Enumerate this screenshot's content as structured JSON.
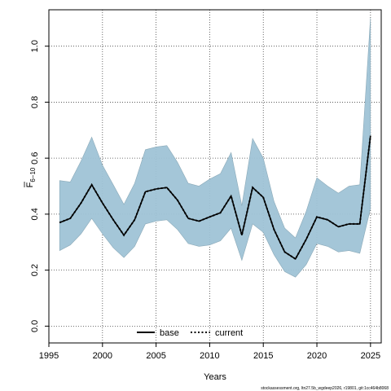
{
  "chart_data": {
    "type": "line",
    "xlabel": "Years",
    "ylabel_main": "F",
    "ylabel_sub": "6−10",
    "xlim": [
      1995,
      2026
    ],
    "ylim": [
      -0.06,
      1.13
    ],
    "x_ticks": [
      1995,
      2000,
      2005,
      2010,
      2015,
      2020,
      2025
    ],
    "y_ticks": [
      0.0,
      0.2,
      0.4,
      0.6,
      0.8,
      1.0
    ],
    "y_tick_labels": [
      "0.0",
      "0.2",
      "0.4",
      "0.6",
      "0.8",
      "1.0"
    ],
    "grid": true,
    "legend_position": "bottom-center",
    "x": [
      1996,
      1997,
      1998,
      1999,
      2000,
      2001,
      2002,
      2003,
      2004,
      2005,
      2006,
      2007,
      2008,
      2009,
      2010,
      2011,
      2012,
      2013,
      2014,
      2015,
      2016,
      2017,
      2018,
      2019,
      2020,
      2021,
      2022,
      2023,
      2024,
      2025
    ],
    "series": [
      {
        "name": "base",
        "style": "solid",
        "color": "#000000",
        "values": [
          0.37,
          0.385,
          0.44,
          0.505,
          0.44,
          0.38,
          0.325,
          0.38,
          0.48,
          0.49,
          0.495,
          0.45,
          0.385,
          0.375,
          0.39,
          0.405,
          0.465,
          0.325,
          0.495,
          0.46,
          0.345,
          0.265,
          0.24,
          0.31,
          0.39,
          0.38,
          0.355,
          0.365,
          0.365,
          0.68
        ]
      },
      {
        "name": "current",
        "style": "dotted",
        "color": "#000000",
        "values": [
          0.37,
          0.385,
          0.44,
          0.505,
          0.44,
          0.38,
          0.325,
          0.38,
          0.48,
          0.49,
          0.495,
          0.45,
          0.385,
          0.375,
          0.39,
          0.405,
          0.465,
          0.325,
          0.495,
          0.46,
          0.345,
          0.265,
          0.24,
          0.31,
          0.39,
          0.38,
          0.355,
          0.365,
          0.365,
          0.68
        ]
      }
    ],
    "band": {
      "color": "#9fc3d6",
      "lower": [
        0.27,
        0.29,
        0.33,
        0.385,
        0.33,
        0.28,
        0.245,
        0.285,
        0.365,
        0.375,
        0.38,
        0.345,
        0.295,
        0.285,
        0.29,
        0.305,
        0.35,
        0.235,
        0.365,
        0.335,
        0.255,
        0.195,
        0.175,
        0.22,
        0.295,
        0.285,
        0.265,
        0.27,
        0.26,
        0.42
      ],
      "upper": [
        0.52,
        0.515,
        0.59,
        0.675,
        0.575,
        0.505,
        0.435,
        0.51,
        0.63,
        0.64,
        0.645,
        0.585,
        0.51,
        0.5,
        0.525,
        0.545,
        0.62,
        0.43,
        0.67,
        0.6,
        0.445,
        0.35,
        0.315,
        0.41,
        0.53,
        0.5,
        0.475,
        0.5,
        0.505,
        1.1
      ]
    },
    "legend": [
      "base",
      "current"
    ],
    "footnote": "stockassessment.org, ltn27.5b_wgdeep2026, r19801, git:1cc464b8068"
  }
}
